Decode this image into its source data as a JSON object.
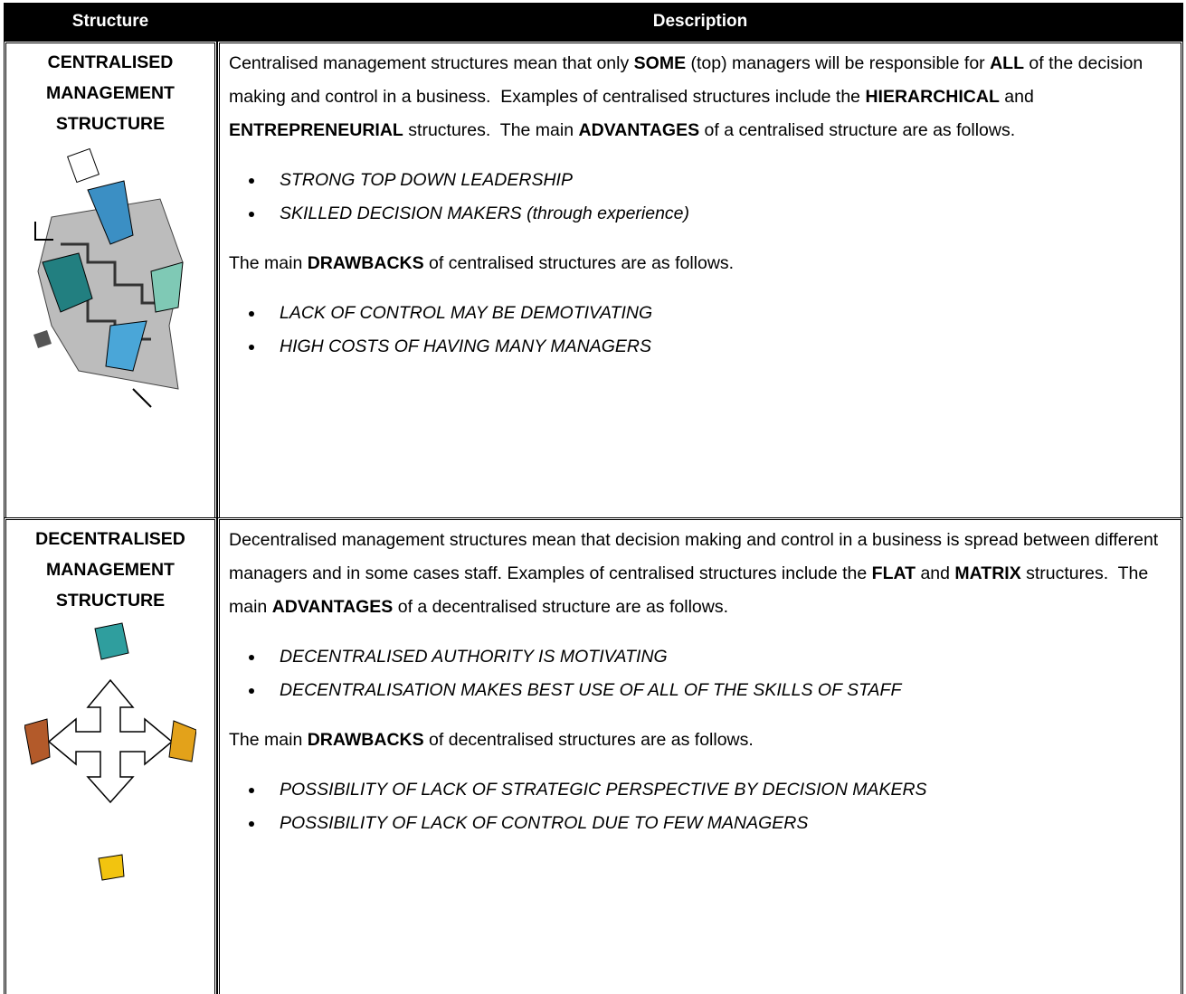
{
  "table": {
    "header": [
      "Structure",
      "Description"
    ],
    "rows": [
      {
        "structure": "CENTRALISED MANAGEMENT STRUCTURE",
        "description": [
          {
            "type": "paragraph",
            "runs": [
              {
                "text": "Centralised management structures mean that only ",
                "bold": false
              },
              {
                "text": "SOME",
                "bold": true
              },
              {
                "text": " (top) managers will be responsible for ",
                "bold": false
              },
              {
                "text": "ALL",
                "bold": true
              },
              {
                "text": " of the decision making and control in a business.  Examples of centralised structures include the ",
                "bold": false
              },
              {
                "text": "HIERARCHICAL",
                "bold": true
              },
              {
                "text": " and ",
                "bold": false
              },
              {
                "text": "ENTREPRENEURIAL",
                "bold": true
              },
              {
                "text": " structures.  The main ",
                "bold": false
              },
              {
                "text": "ADVANTAGES",
                "bold": true
              },
              {
                "text": " of a centralised structure are as follows.",
                "bold": false
              }
            ]
          },
          {
            "type": "list",
            "items": [
              "STRONG TOP DOWN LEADERSHIP",
              "SKILLED DECISION MAKERS (through experience)"
            ]
          },
          {
            "type": "paragraph",
            "runs": [
              {
                "text": "The main ",
                "bold": false
              },
              {
                "text": "DRAWBACKS",
                "bold": true
              },
              {
                "text": " of centralised structures are as follows.",
                "bold": false
              }
            ]
          },
          {
            "type": "list",
            "items": [
              "LACK OF CONTROL MAY BE DEMOTIVATING",
              "HIGH COSTS OF HAVING MANY MANAGERS"
            ]
          }
        ]
      },
      {
        "structure": "DECENTRALISED MANAGEMENT STRUCTURE",
        "description": [
          {
            "type": "paragraph",
            "runs": [
              {
                "text": "Decentralised management structures mean that decision making and control in a business is spread between different managers and in some cases staff. Examples of centralised structures include the ",
                "bold": false
              },
              {
                "text": "FLAT",
                "bold": true
              },
              {
                "text": " and ",
                "bold": false
              },
              {
                "text": "MATRIX",
                "bold": true
              },
              {
                "text": " structures.  The main ",
                "bold": false
              },
              {
                "text": "ADVANTAGES",
                "bold": true
              },
              {
                "text": " of a decentralised structure are as follows.",
                "bold": false
              }
            ]
          },
          {
            "type": "list",
            "items": [
              "DECENTRALISED AUTHORITY IS MOTIVATING",
              "DECENTRALISATION MAKES BEST USE OF ALL OF THE SKILLS OF STAFF"
            ]
          },
          {
            "type": "paragraph",
            "runs": [
              {
                "text": "The main ",
                "bold": false
              },
              {
                "text": "DRAWBACKS",
                "bold": true
              },
              {
                "text": " of decentralised structures are as follows.",
                "bold": false
              }
            ]
          },
          {
            "type": "list",
            "items": [
              "POSSIBILITY OF LACK OF STRATEGIC PERSPECTIVE BY DECISION MAKERS",
              "POSSIBILITY OF LACK OF CONTROL DUE TO FEW MANAGERS"
            ]
          }
        ]
      }
    ]
  }
}
